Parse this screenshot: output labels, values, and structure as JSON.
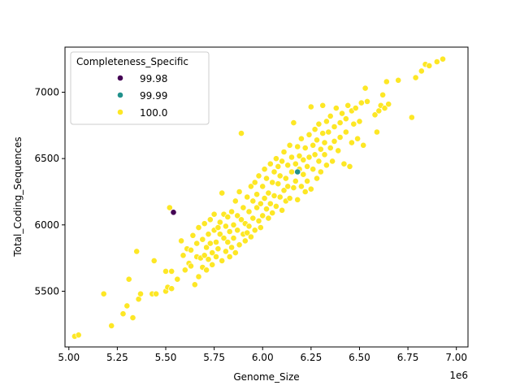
{
  "chart_data": {
    "type": "scatter",
    "title": "",
    "xlabel": "Genome_Size",
    "ylabel": "Total_Coding_Sequences",
    "x_offset_label": "1e6",
    "xlim": [
      4.98,
      7.06
    ],
    "ylim": [
      5080,
      7340
    ],
    "x_ticks": [
      "5.00",
      "5.25",
      "5.50",
      "5.75",
      "6.00",
      "6.25",
      "6.50",
      "6.75",
      "7.00"
    ],
    "y_ticks": [
      "5500",
      "6000",
      "6500",
      "7000"
    ],
    "grid": false,
    "legend": {
      "title": "Completeness_Specific",
      "placement": "upper-left",
      "entries": [
        {
          "label": "99.98",
          "color": "#440154"
        },
        {
          "label": "99.99",
          "color": "#21918c"
        },
        {
          "label": "100.0",
          "color": "#fde725"
        }
      ]
    },
    "series": [
      {
        "name": "99.98",
        "color": "#440154",
        "points": [
          [
            5.54,
            6095
          ]
        ]
      },
      {
        "name": "99.99",
        "color": "#21918c",
        "points": [
          [
            6.18,
            6400
          ]
        ]
      },
      {
        "name": "100.0",
        "color": "#fde725",
        "points": [
          [
            5.03,
            5160
          ],
          [
            5.05,
            5170
          ],
          [
            5.18,
            5480
          ],
          [
            5.22,
            5240
          ],
          [
            5.28,
            5330
          ],
          [
            5.3,
            5390
          ],
          [
            5.31,
            5590
          ],
          [
            5.33,
            5300
          ],
          [
            5.35,
            5800
          ],
          [
            5.36,
            5440
          ],
          [
            5.37,
            5480
          ],
          [
            5.43,
            5480
          ],
          [
            5.44,
            5730
          ],
          [
            5.45,
            5480
          ],
          [
            5.5,
            5500
          ],
          [
            5.5,
            5650
          ],
          [
            5.51,
            5530
          ],
          [
            5.52,
            6130
          ],
          [
            5.53,
            5520
          ],
          [
            5.53,
            5650
          ],
          [
            5.56,
            5590
          ],
          [
            5.58,
            5880
          ],
          [
            5.59,
            5770
          ],
          [
            5.6,
            5660
          ],
          [
            5.61,
            5820
          ],
          [
            5.62,
            5710
          ],
          [
            5.63,
            5810
          ],
          [
            5.63,
            5690
          ],
          [
            5.64,
            5920
          ],
          [
            5.65,
            5550
          ],
          [
            5.66,
            5860
          ],
          [
            5.66,
            5760
          ],
          [
            5.67,
            5610
          ],
          [
            5.67,
            5980
          ],
          [
            5.68,
            5750
          ],
          [
            5.69,
            5680
          ],
          [
            5.69,
            5890
          ],
          [
            5.7,
            5770
          ],
          [
            5.7,
            6010
          ],
          [
            5.71,
            5660
          ],
          [
            5.71,
            5830
          ],
          [
            5.72,
            5930
          ],
          [
            5.72,
            5740
          ],
          [
            5.73,
            6040
          ],
          [
            5.73,
            5860
          ],
          [
            5.74,
            5790
          ],
          [
            5.74,
            5700
          ],
          [
            5.75,
            5960
          ],
          [
            5.75,
            6080
          ],
          [
            5.76,
            5870
          ],
          [
            5.76,
            5760
          ],
          [
            5.77,
            5980
          ],
          [
            5.77,
            5820
          ],
          [
            5.78,
            6020
          ],
          [
            5.78,
            5930
          ],
          [
            5.79,
            6240
          ],
          [
            5.79,
            5730
          ],
          [
            5.8,
            5900
          ],
          [
            5.8,
            6080
          ],
          [
            5.81,
            5800
          ],
          [
            5.81,
            5990
          ],
          [
            5.82,
            5870
          ],
          [
            5.82,
            6060
          ],
          [
            5.83,
            5760
          ],
          [
            5.83,
            5950
          ],
          [
            5.84,
            6100
          ],
          [
            5.84,
            5830
          ],
          [
            5.85,
            6000
          ],
          [
            5.85,
            5900
          ],
          [
            5.86,
            6180
          ],
          [
            5.86,
            5790
          ],
          [
            5.87,
            6070
          ],
          [
            5.87,
            5960
          ],
          [
            5.88,
            6250
          ],
          [
            5.88,
            5850
          ],
          [
            5.89,
            6690
          ],
          [
            5.89,
            6040
          ],
          [
            5.9,
            5930
          ],
          [
            5.9,
            6130
          ],
          [
            5.91,
            5880
          ],
          [
            5.91,
            6010
          ],
          [
            5.92,
            6210
          ],
          [
            5.92,
            5940
          ],
          [
            5.93,
            6100
          ],
          [
            5.93,
            5990
          ],
          [
            5.94,
            6290
          ],
          [
            5.94,
            5910
          ],
          [
            5.95,
            6180
          ],
          [
            5.95,
            6050
          ],
          [
            5.96,
            6320
          ],
          [
            5.96,
            5960
          ],
          [
            5.97,
            6130
          ],
          [
            5.97,
            6230
          ],
          [
            5.98,
            6030
          ],
          [
            5.98,
            6370
          ],
          [
            5.99,
            6160
          ],
          [
            5.99,
            5980
          ],
          [
            6.0,
            6290
          ],
          [
            6.0,
            6070
          ],
          [
            6.01,
            6420
          ],
          [
            6.01,
            6200
          ],
          [
            6.02,
            6120
          ],
          [
            6.02,
            6350
          ],
          [
            6.03,
            6050
          ],
          [
            6.03,
            6240
          ],
          [
            6.04,
            6460
          ],
          [
            6.04,
            6160
          ],
          [
            6.05,
            6320
          ],
          [
            6.05,
            6090
          ],
          [
            6.06,
            6400
          ],
          [
            6.06,
            6220
          ],
          [
            6.07,
            6500
          ],
          [
            6.07,
            6140
          ],
          [
            6.08,
            6310
          ],
          [
            6.08,
            6440
          ],
          [
            6.09,
            6210
          ],
          [
            6.09,
            6370
          ],
          [
            6.1,
            6110
          ],
          [
            6.1,
            6480
          ],
          [
            6.11,
            6260
          ],
          [
            6.11,
            6550
          ],
          [
            6.12,
            6350
          ],
          [
            6.12,
            6180
          ],
          [
            6.13,
            6450
          ],
          [
            6.13,
            6290
          ],
          [
            6.14,
            6600
          ],
          [
            6.14,
            6200
          ],
          [
            6.15,
            6400
          ],
          [
            6.15,
            6510
          ],
          [
            6.16,
            6280
          ],
          [
            6.16,
            6770
          ],
          [
            6.17,
            6460
          ],
          [
            6.17,
            6330
          ],
          [
            6.18,
            6590
          ],
          [
            6.18,
            6190
          ],
          [
            6.19,
            6420
          ],
          [
            6.19,
            6520
          ],
          [
            6.2,
            6290
          ],
          [
            6.2,
            6650
          ],
          [
            6.21,
            6380
          ],
          [
            6.21,
            6490
          ],
          [
            6.22,
            6250
          ],
          [
            6.22,
            6580
          ],
          [
            6.23,
            6440
          ],
          [
            6.23,
            6330
          ],
          [
            6.24,
            6680
          ],
          [
            6.24,
            6510
          ],
          [
            6.25,
            6270
          ],
          [
            6.25,
            6890
          ],
          [
            6.26,
            6600
          ],
          [
            6.26,
            6420
          ],
          [
            6.27,
            6720
          ],
          [
            6.27,
            6530
          ],
          [
            6.28,
            6350
          ],
          [
            6.28,
            6640
          ],
          [
            6.29,
            6480
          ],
          [
            6.29,
            6760
          ],
          [
            6.3,
            6570
          ],
          [
            6.3,
            6400
          ],
          [
            6.31,
            6900
          ],
          [
            6.31,
            6690
          ],
          [
            6.32,
            6530
          ],
          [
            6.32,
            6620
          ],
          [
            6.33,
            6780
          ],
          [
            6.33,
            6450
          ],
          [
            6.34,
            6700
          ],
          [
            6.35,
            6580
          ],
          [
            6.35,
            6820
          ],
          [
            6.36,
            6480
          ],
          [
            6.37,
            6740
          ],
          [
            6.37,
            6630
          ],
          [
            6.38,
            6880
          ],
          [
            6.39,
            6560
          ],
          [
            6.4,
            6770
          ],
          [
            6.4,
            6660
          ],
          [
            6.41,
            6840
          ],
          [
            6.42,
            6460
          ],
          [
            6.43,
            6800
          ],
          [
            6.43,
            6700
          ],
          [
            6.44,
            6900
          ],
          [
            6.45,
            6440
          ],
          [
            6.46,
            6860
          ],
          [
            6.46,
            6620
          ],
          [
            6.47,
            6760
          ],
          [
            6.48,
            6880
          ],
          [
            6.49,
            6650
          ],
          [
            6.5,
            6780
          ],
          [
            6.51,
            6920
          ],
          [
            6.52,
            6600
          ],
          [
            6.53,
            7030
          ],
          [
            6.54,
            6930
          ],
          [
            6.58,
            6830
          ],
          [
            6.59,
            6700
          ],
          [
            6.6,
            6860
          ],
          [
            6.61,
            6900
          ],
          [
            6.62,
            6980
          ],
          [
            6.63,
            6880
          ],
          [
            6.64,
            7080
          ],
          [
            6.65,
            6910
          ],
          [
            6.7,
            7090
          ],
          [
            6.77,
            6810
          ],
          [
            6.79,
            7110
          ],
          [
            6.82,
            7160
          ],
          [
            6.84,
            7210
          ],
          [
            6.86,
            7200
          ],
          [
            6.9,
            7230
          ],
          [
            6.93,
            7250
          ]
        ]
      }
    ]
  }
}
